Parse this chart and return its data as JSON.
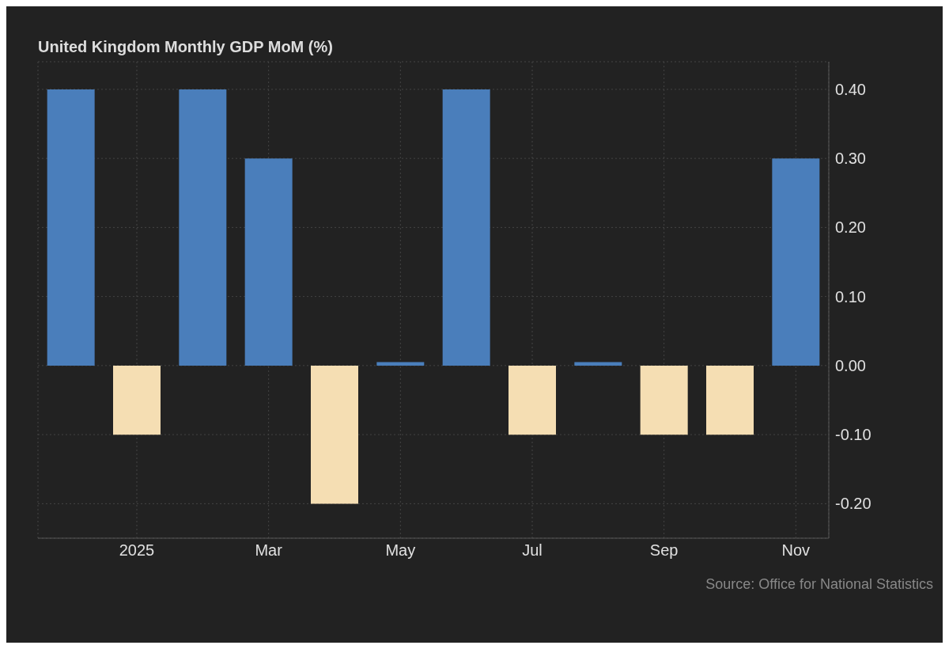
{
  "chart_data": {
    "type": "bar",
    "title": "United Kingdom Monthly GDP MoM (%)",
    "categories": [
      null,
      "2025",
      null,
      "Mar",
      null,
      "May",
      null,
      "Jul",
      null,
      "Sep",
      null,
      "Nov"
    ],
    "values": [
      0.4,
      -0.1,
      0.4,
      0.3,
      -0.2,
      0.005,
      0.4,
      -0.1,
      0.005,
      -0.1,
      -0.1,
      0.3
    ],
    "colors": [
      "#4a7ebb",
      "#f5deb3",
      "#4a7ebb",
      "#4a7ebb",
      "#f5deb3",
      "#4a7ebb",
      "#4a7ebb",
      "#f5deb3",
      "#4a7ebb",
      "#f5deb3",
      "#f5deb3",
      "#4a7ebb"
    ],
    "ylim": [
      -0.25,
      0.44
    ],
    "yticks": [
      {
        "value": -0.2,
        "label": "-0.20"
      },
      {
        "value": -0.1,
        "label": "-0.10"
      },
      {
        "value": 0,
        "label": "0.00"
      },
      {
        "value": 0.1,
        "label": "0.10"
      },
      {
        "value": 0.2,
        "label": "0.20"
      },
      {
        "value": 0.3,
        "label": "0.30"
      },
      {
        "value": 0.4,
        "label": "0.40"
      }
    ],
    "grid": true,
    "annotations": [
      "Source: Office for National Statistics"
    ]
  }
}
